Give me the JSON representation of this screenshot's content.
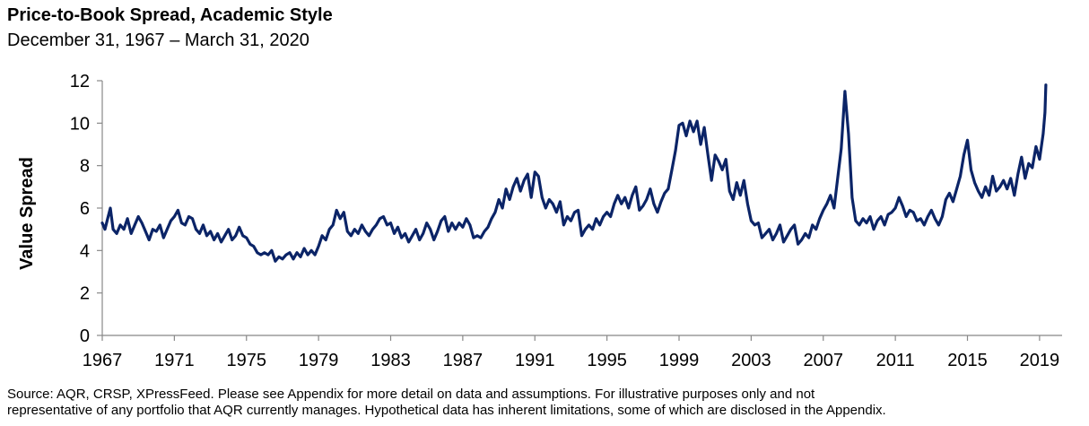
{
  "title": "Price-to-Book Spread, Academic Style",
  "subtitle": "December 31, 1967 – March 31, 2020",
  "source_note": {
    "line1": "Source: AQR, CRSP, XPressFeed. Please see Appendix for more detail on data and assumptions. For illustrative purposes only and not",
    "line2": "representative of any portfolio that AQR currently manages. Hypothetical data has inherent limitations, some of which are disclosed in the Appendix."
  },
  "chart_data": {
    "type": "line",
    "title": "Price-to-Book Spread, Academic Style",
    "ylabel": "Value Spread",
    "xlabel": "",
    "xlim": [
      1967,
      2020.25
    ],
    "ylim": [
      0,
      12
    ],
    "yticks": [
      0,
      2,
      4,
      6,
      8,
      10,
      12
    ],
    "xticks": [
      1967,
      1971,
      1975,
      1979,
      1983,
      1987,
      1991,
      1995,
      1999,
      2003,
      2007,
      2011,
      2015,
      2019
    ],
    "color": "#0b2467",
    "series": [
      {
        "name": "Value Spread",
        "points": [
          [
            1967.0,
            5.3
          ],
          [
            1967.15,
            5.0
          ],
          [
            1967.3,
            5.5
          ],
          [
            1967.45,
            6.0
          ],
          [
            1967.6,
            5.0
          ],
          [
            1967.8,
            4.8
          ],
          [
            1968.0,
            5.2
          ],
          [
            1968.2,
            5.0
          ],
          [
            1968.4,
            5.5
          ],
          [
            1968.6,
            4.8
          ],
          [
            1968.8,
            5.2
          ],
          [
            1969.0,
            5.6
          ],
          [
            1969.2,
            5.3
          ],
          [
            1969.4,
            4.9
          ],
          [
            1969.6,
            4.5
          ],
          [
            1969.8,
            5.0
          ],
          [
            1970.0,
            4.9
          ],
          [
            1970.2,
            5.2
          ],
          [
            1970.4,
            4.6
          ],
          [
            1970.6,
            5.0
          ],
          [
            1970.8,
            5.4
          ],
          [
            1971.0,
            5.6
          ],
          [
            1971.2,
            5.9
          ],
          [
            1971.4,
            5.3
          ],
          [
            1971.6,
            5.2
          ],
          [
            1971.8,
            5.6
          ],
          [
            1972.0,
            5.5
          ],
          [
            1972.2,
            5.0
          ],
          [
            1972.4,
            4.8
          ],
          [
            1972.6,
            5.2
          ],
          [
            1972.8,
            4.7
          ],
          [
            1973.0,
            4.9
          ],
          [
            1973.2,
            4.5
          ],
          [
            1973.4,
            4.8
          ],
          [
            1973.6,
            4.4
          ],
          [
            1973.8,
            4.7
          ],
          [
            1974.0,
            5.0
          ],
          [
            1974.2,
            4.5
          ],
          [
            1974.4,
            4.7
          ],
          [
            1974.6,
            5.1
          ],
          [
            1974.8,
            4.7
          ],
          [
            1975.0,
            4.6
          ],
          [
            1975.2,
            4.3
          ],
          [
            1975.4,
            4.2
          ],
          [
            1975.6,
            3.9
          ],
          [
            1975.8,
            3.8
          ],
          [
            1976.0,
            3.9
          ],
          [
            1976.2,
            3.8
          ],
          [
            1976.4,
            4.0
          ],
          [
            1976.6,
            3.5
          ],
          [
            1976.8,
            3.7
          ],
          [
            1977.0,
            3.6
          ],
          [
            1977.2,
            3.8
          ],
          [
            1977.4,
            3.9
          ],
          [
            1977.6,
            3.6
          ],
          [
            1977.8,
            3.9
          ],
          [
            1978.0,
            3.7
          ],
          [
            1978.2,
            4.1
          ],
          [
            1978.4,
            3.8
          ],
          [
            1978.6,
            4.0
          ],
          [
            1978.8,
            3.8
          ],
          [
            1979.0,
            4.2
          ],
          [
            1979.2,
            4.7
          ],
          [
            1979.4,
            4.5
          ],
          [
            1979.6,
            5.0
          ],
          [
            1979.8,
            5.2
          ],
          [
            1980.0,
            5.9
          ],
          [
            1980.2,
            5.5
          ],
          [
            1980.4,
            5.8
          ],
          [
            1980.6,
            4.9
          ],
          [
            1980.8,
            4.7
          ],
          [
            1981.0,
            5.0
          ],
          [
            1981.2,
            4.8
          ],
          [
            1981.4,
            5.2
          ],
          [
            1981.6,
            4.9
          ],
          [
            1981.8,
            4.7
          ],
          [
            1982.0,
            5.0
          ],
          [
            1982.2,
            5.2
          ],
          [
            1982.4,
            5.5
          ],
          [
            1982.6,
            5.6
          ],
          [
            1982.8,
            5.2
          ],
          [
            1983.0,
            5.3
          ],
          [
            1983.2,
            4.8
          ],
          [
            1983.4,
            5.1
          ],
          [
            1983.6,
            4.6
          ],
          [
            1983.8,
            4.8
          ],
          [
            1984.0,
            4.4
          ],
          [
            1984.2,
            4.7
          ],
          [
            1984.4,
            5.0
          ],
          [
            1984.6,
            4.5
          ],
          [
            1984.8,
            4.8
          ],
          [
            1985.0,
            5.3
          ],
          [
            1985.2,
            5.0
          ],
          [
            1985.4,
            4.5
          ],
          [
            1985.6,
            4.9
          ],
          [
            1985.8,
            5.4
          ],
          [
            1986.0,
            5.6
          ],
          [
            1986.2,
            4.9
          ],
          [
            1986.4,
            5.3
          ],
          [
            1986.6,
            5.0
          ],
          [
            1986.8,
            5.3
          ],
          [
            1987.0,
            5.1
          ],
          [
            1987.2,
            5.5
          ],
          [
            1987.4,
            5.2
          ],
          [
            1987.6,
            4.6
          ],
          [
            1987.8,
            4.7
          ],
          [
            1988.0,
            4.6
          ],
          [
            1988.2,
            4.9
          ],
          [
            1988.4,
            5.1
          ],
          [
            1988.6,
            5.5
          ],
          [
            1988.8,
            5.8
          ],
          [
            1989.0,
            6.4
          ],
          [
            1989.2,
            6.0
          ],
          [
            1989.4,
            6.9
          ],
          [
            1989.6,
            6.4
          ],
          [
            1989.8,
            7.0
          ],
          [
            1990.0,
            7.4
          ],
          [
            1990.2,
            6.8
          ],
          [
            1990.4,
            7.3
          ],
          [
            1990.6,
            7.6
          ],
          [
            1990.8,
            6.5
          ],
          [
            1991.0,
            7.7
          ],
          [
            1991.2,
            7.5
          ],
          [
            1991.4,
            6.5
          ],
          [
            1991.6,
            6.0
          ],
          [
            1991.8,
            6.4
          ],
          [
            1992.0,
            6.2
          ],
          [
            1992.2,
            5.8
          ],
          [
            1992.4,
            6.3
          ],
          [
            1992.6,
            5.2
          ],
          [
            1992.8,
            5.6
          ],
          [
            1993.0,
            5.4
          ],
          [
            1993.2,
            5.8
          ],
          [
            1993.4,
            5.9
          ],
          [
            1993.6,
            4.7
          ],
          [
            1993.8,
            5.0
          ],
          [
            1994.0,
            5.2
          ],
          [
            1994.2,
            5.0
          ],
          [
            1994.4,
            5.5
          ],
          [
            1994.6,
            5.2
          ],
          [
            1994.8,
            5.6
          ],
          [
            1995.0,
            5.8
          ],
          [
            1995.2,
            5.6
          ],
          [
            1995.4,
            6.2
          ],
          [
            1995.6,
            6.6
          ],
          [
            1995.8,
            6.2
          ],
          [
            1996.0,
            6.5
          ],
          [
            1996.2,
            6.0
          ],
          [
            1996.4,
            6.6
          ],
          [
            1996.6,
            7.0
          ],
          [
            1996.8,
            5.9
          ],
          [
            1997.0,
            6.1
          ],
          [
            1997.2,
            6.4
          ],
          [
            1997.4,
            6.9
          ],
          [
            1997.6,
            6.2
          ],
          [
            1997.8,
            5.8
          ],
          [
            1998.0,
            6.3
          ],
          [
            1998.2,
            6.7
          ],
          [
            1998.4,
            6.9
          ],
          [
            1998.6,
            7.8
          ],
          [
            1998.8,
            8.7
          ],
          [
            1999.0,
            9.9
          ],
          [
            1999.2,
            10.0
          ],
          [
            1999.4,
            9.4
          ],
          [
            1999.6,
            10.1
          ],
          [
            1999.8,
            9.6
          ],
          [
            2000.0,
            10.1
          ],
          [
            2000.2,
            9.0
          ],
          [
            2000.4,
            9.8
          ],
          [
            2000.6,
            8.5
          ],
          [
            2000.8,
            7.3
          ],
          [
            2001.0,
            8.5
          ],
          [
            2001.2,
            8.2
          ],
          [
            2001.4,
            7.8
          ],
          [
            2001.6,
            8.3
          ],
          [
            2001.8,
            6.8
          ],
          [
            2002.0,
            6.4
          ],
          [
            2002.2,
            7.2
          ],
          [
            2002.4,
            6.6
          ],
          [
            2002.6,
            7.3
          ],
          [
            2002.8,
            6.2
          ],
          [
            2003.0,
            5.4
          ],
          [
            2003.2,
            5.2
          ],
          [
            2003.4,
            5.3
          ],
          [
            2003.6,
            4.6
          ],
          [
            2003.8,
            4.8
          ],
          [
            2004.0,
            5.0
          ],
          [
            2004.2,
            4.5
          ],
          [
            2004.4,
            4.8
          ],
          [
            2004.6,
            5.2
          ],
          [
            2004.8,
            4.4
          ],
          [
            2005.0,
            4.7
          ],
          [
            2005.2,
            5.0
          ],
          [
            2005.4,
            5.2
          ],
          [
            2005.6,
            4.3
          ],
          [
            2005.8,
            4.5
          ],
          [
            2006.0,
            4.8
          ],
          [
            2006.2,
            4.6
          ],
          [
            2006.4,
            5.2
          ],
          [
            2006.6,
            5.0
          ],
          [
            2006.8,
            5.5
          ],
          [
            2007.0,
            5.9
          ],
          [
            2007.2,
            6.2
          ],
          [
            2007.4,
            6.6
          ],
          [
            2007.6,
            6.0
          ],
          [
            2007.8,
            7.4
          ],
          [
            2008.0,
            8.8
          ],
          [
            2008.2,
            11.5
          ],
          [
            2008.4,
            9.5
          ],
          [
            2008.6,
            6.5
          ],
          [
            2008.8,
            5.4
          ],
          [
            2009.0,
            5.2
          ],
          [
            2009.2,
            5.5
          ],
          [
            2009.4,
            5.3
          ],
          [
            2009.6,
            5.6
          ],
          [
            2009.8,
            5.0
          ],
          [
            2010.0,
            5.4
          ],
          [
            2010.2,
            5.6
          ],
          [
            2010.4,
            5.2
          ],
          [
            2010.6,
            5.7
          ],
          [
            2010.8,
            5.8
          ],
          [
            2011.0,
            6.0
          ],
          [
            2011.2,
            6.5
          ],
          [
            2011.4,
            6.1
          ],
          [
            2011.6,
            5.6
          ],
          [
            2011.8,
            5.9
          ],
          [
            2012.0,
            5.8
          ],
          [
            2012.2,
            5.4
          ],
          [
            2012.4,
            5.5
          ],
          [
            2012.6,
            5.2
          ],
          [
            2012.8,
            5.6
          ],
          [
            2013.0,
            5.9
          ],
          [
            2013.2,
            5.5
          ],
          [
            2013.4,
            5.2
          ],
          [
            2013.6,
            5.6
          ],
          [
            2013.8,
            6.4
          ],
          [
            2014.0,
            6.7
          ],
          [
            2014.2,
            6.3
          ],
          [
            2014.4,
            6.9
          ],
          [
            2014.6,
            7.5
          ],
          [
            2014.8,
            8.5
          ],
          [
            2015.0,
            9.2
          ],
          [
            2015.2,
            7.8
          ],
          [
            2015.4,
            7.2
          ],
          [
            2015.6,
            6.8
          ],
          [
            2015.8,
            6.5
          ],
          [
            2016.0,
            7.0
          ],
          [
            2016.2,
            6.6
          ],
          [
            2016.4,
            7.5
          ],
          [
            2016.6,
            6.8
          ],
          [
            2016.8,
            7.0
          ],
          [
            2017.0,
            7.3
          ],
          [
            2017.2,
            6.9
          ],
          [
            2017.4,
            7.4
          ],
          [
            2017.6,
            6.6
          ],
          [
            2017.8,
            7.6
          ],
          [
            2018.0,
            8.4
          ],
          [
            2018.2,
            7.4
          ],
          [
            2018.4,
            8.1
          ],
          [
            2018.6,
            7.9
          ],
          [
            2018.8,
            8.9
          ],
          [
            2019.0,
            8.3
          ],
          [
            2019.2,
            9.5
          ],
          [
            2019.3,
            10.5
          ],
          [
            2019.35,
            11.8
          ]
        ]
      }
    ]
  }
}
